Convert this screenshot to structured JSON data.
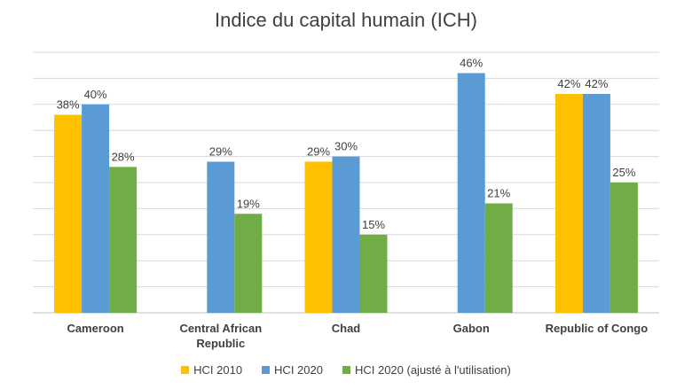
{
  "colors": {
    "hci_2010": "#FFC000",
    "hci_2020": "#5B9BD5",
    "hci_2020_adj": "#70AD47",
    "grid": "#D9D9D9",
    "text": "#404040"
  },
  "chart_data": {
    "type": "bar",
    "title": "Indice du capital humain (ICH)",
    "xlabel": "",
    "ylabel": "",
    "ylim": [
      0,
      0.5
    ],
    "grid": true,
    "legend_position": "bottom",
    "categories": [
      "Cameroon",
      "Central African Republic",
      "Chad",
      "Gabon",
      "Republic of Congo"
    ],
    "category_lines": [
      [
        "Cameroon"
      ],
      [
        "Central African",
        "Republic"
      ],
      [
        "Chad"
      ],
      [
        "Gabon"
      ],
      [
        "Republic of Congo"
      ]
    ],
    "series": [
      {
        "name": "HCI 2010",
        "color_key": "hci_2010",
        "values": [
          0.38,
          null,
          0.29,
          null,
          0.42
        ],
        "labels": [
          "38%",
          "",
          "29%",
          "",
          "42%"
        ]
      },
      {
        "name": "HCI 2020",
        "color_key": "hci_2020",
        "values": [
          0.4,
          0.29,
          0.3,
          0.46,
          0.42
        ],
        "labels": [
          "40%",
          "29%",
          "30%",
          "46%",
          "42%"
        ]
      },
      {
        "name": "HCI 2020 (ajusté à l'utilisation)",
        "color_key": "hci_2020_adj",
        "values": [
          0.28,
          0.19,
          0.15,
          0.21,
          0.25
        ],
        "labels": [
          "28%",
          "19%",
          "15%",
          "21%",
          "25%"
        ]
      }
    ]
  }
}
